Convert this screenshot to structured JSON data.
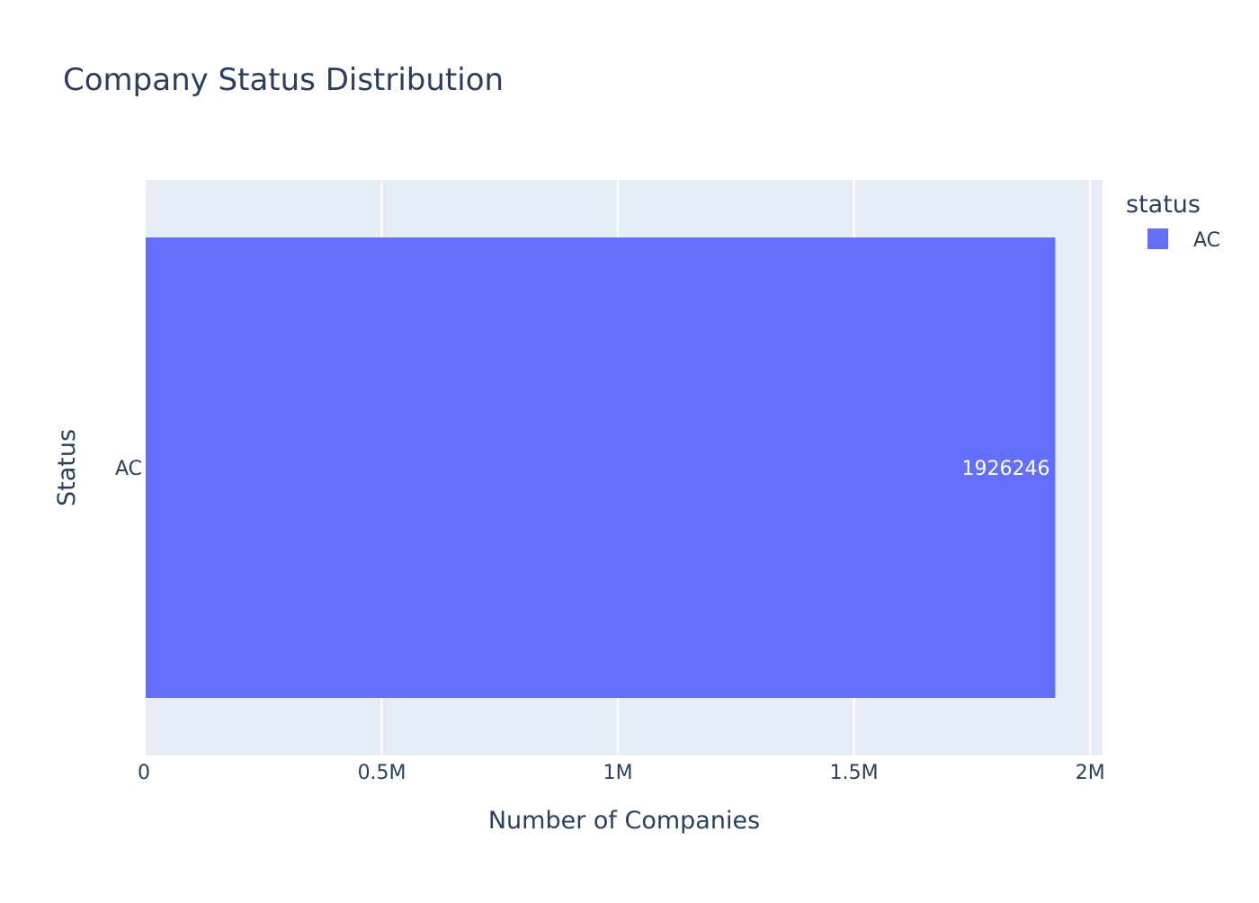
{
  "chart_data": {
    "type": "bar",
    "orientation": "horizontal",
    "title": "Company Status Distribution",
    "xlabel": "Number of Companies",
    "ylabel": "Status",
    "categories": [
      "AC"
    ],
    "series": [
      {
        "name": "AC",
        "values": [
          1926246
        ],
        "value_labels": [
          "1926246"
        ],
        "color": "#636efa"
      }
    ],
    "xlim": [
      0,
      2026246
    ],
    "x_ticks": [
      0,
      500000,
      1000000,
      1500000,
      2000000
    ],
    "x_tick_labels": [
      "0",
      "0.5M",
      "1M",
      "1.5M",
      "2M"
    ],
    "grid": true,
    "legend": {
      "title": "status",
      "position": "top-right",
      "entries": [
        "AC"
      ]
    }
  },
  "colors": {
    "plot_background": "#e5ecf6",
    "gridline": "#ffffff",
    "text": "#2a3f5f",
    "bar_label": "#ffffff"
  }
}
